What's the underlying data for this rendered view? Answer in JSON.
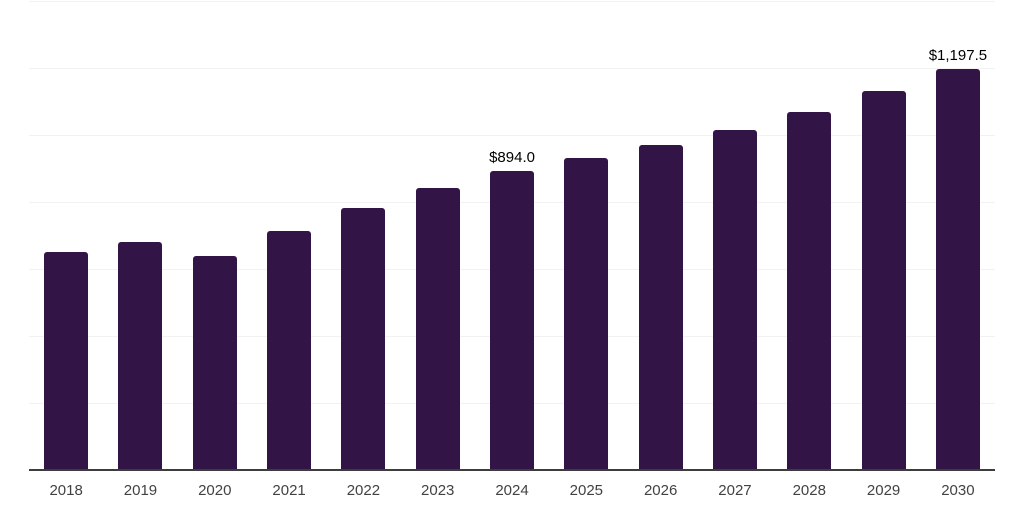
{
  "chart_data": {
    "type": "bar",
    "title": "",
    "xlabel": "",
    "ylabel": "",
    "categories": [
      "2018",
      "2019",
      "2020",
      "2021",
      "2022",
      "2023",
      "2024",
      "2025",
      "2026",
      "2027",
      "2028",
      "2029",
      "2030"
    ],
    "values": [
      650,
      680,
      638,
      712,
      782,
      843,
      894.0,
      930,
      970,
      1015,
      1070,
      1132,
      1197.5
    ],
    "data_labels": [
      null,
      null,
      null,
      null,
      null,
      null,
      "$894.0",
      null,
      null,
      null,
      null,
      null,
      "$1,197.5"
    ],
    "ylim": [
      0,
      1400
    ],
    "gridline_interval": 200,
    "grid": "horizontal",
    "legend": "none",
    "colors": {
      "bar": "#321447",
      "background": "#ffffff",
      "gridline": "#f2f2f2",
      "axis_line": "#3d3d3d",
      "tick_label": "#424242",
      "data_label": "#000000"
    }
  }
}
